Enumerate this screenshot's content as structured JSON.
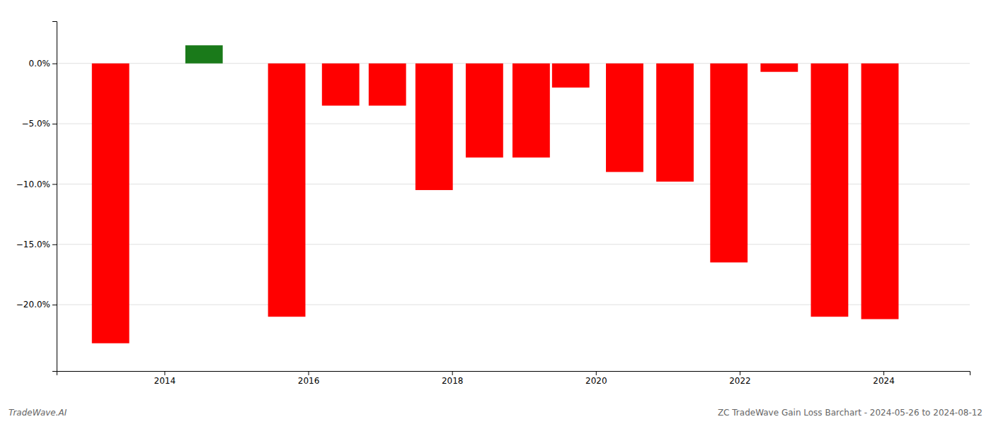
{
  "chart_data": {
    "type": "bar",
    "x": [
      2013.25,
      2014.55,
      2015.7,
      2016.45,
      2017.1,
      2017.75,
      2018.45,
      2019.1,
      2019.65,
      2020.4,
      2021.1,
      2021.85,
      2022.55,
      2023.25,
      2023.95
    ],
    "values": [
      -23.2,
      1.5,
      -21.0,
      -3.5,
      -3.5,
      -10.5,
      -7.8,
      -7.8,
      -2.0,
      -9.0,
      -9.8,
      -16.5,
      -0.7,
      -21.0,
      -21.2
    ],
    "colors": [
      "#ff0000",
      "#1a7a1a",
      "#ff0000",
      "#ff0000",
      "#ff0000",
      "#ff0000",
      "#ff0000",
      "#ff0000",
      "#ff0000",
      "#ff0000",
      "#ff0000",
      "#ff0000",
      "#ff0000",
      "#ff0000",
      "#ff0000"
    ],
    "xlim": [
      2012.5,
      2025.2
    ],
    "xticks": [
      2014,
      2016,
      2018,
      2020,
      2022,
      2024
    ],
    "ylim": [
      -25.5,
      3.5
    ],
    "yticks": [
      {
        "value": 0.0,
        "label": "0.0%"
      },
      {
        "value": -5.0,
        "label": "−5.0%"
      },
      {
        "value": -10.0,
        "label": "−10.0%"
      },
      {
        "value": -15.0,
        "label": "−15.0%"
      },
      {
        "value": -20.0,
        "label": "−20.0%"
      }
    ],
    "grid": true,
    "annotations": [
      "TradeWave.AI",
      "ZC TradeWave Gain Loss Barchart - 2024-05-26 to 2024-08-12"
    ]
  }
}
